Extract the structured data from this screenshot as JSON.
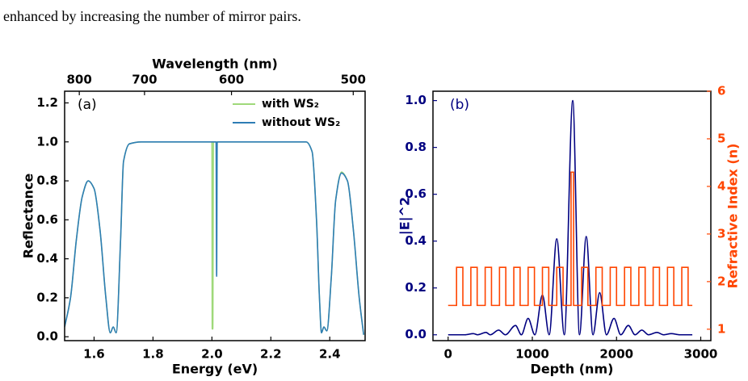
{
  "paragraph": "enhanced by increasing the number of mirror pairs.",
  "chart_data": [
    {
      "type": "line",
      "annotation": "(a)",
      "xlabel": "Energy (eV)",
      "ylabel": "Reflectance",
      "x2label": "Wavelength (nm)",
      "xlim": [
        1.5,
        2.52
      ],
      "ylim": [
        -0.02,
        1.26
      ],
      "xticks": [
        1.6,
        1.8,
        {
          "value": 2.0,
          "label": "2.0"
        },
        2.2,
        2.4
      ],
      "yticks": [
        {
          "value": 0,
          "label": "0.0"
        },
        0.2,
        0.4,
        0.6,
        0.8,
        {
          "value": 1.0,
          "label": "1.0"
        },
        1.2
      ],
      "x2ticks": [
        800,
        700,
        600,
        500
      ],
      "legend": "upper right",
      "x": [
        1.5,
        1.52,
        1.54,
        1.56,
        1.58,
        1.6,
        1.62,
        1.64,
        1.655,
        1.665,
        1.675,
        1.69,
        1.7,
        1.72,
        1.76,
        2.0,
        2.001,
        2.003,
        2.005,
        2.014,
        2.016,
        2.018,
        2.32,
        2.34,
        2.355,
        2.365,
        2.372,
        2.38,
        2.39,
        2.405,
        2.42,
        2.44,
        2.46,
        2.48,
        2.5,
        2.515
      ],
      "series": [
        {
          "name": "with WS₂",
          "color": "#9fd97a",
          "values": [
            0.05,
            0.2,
            0.5,
            0.72,
            0.8,
            0.76,
            0.55,
            0.2,
            0.02,
            0.05,
            0.02,
            0.5,
            0.9,
            0.99,
            1.0,
            1.0,
            0.04,
            0.04,
            1.0,
            1.0,
            1.0,
            1.0,
            1.0,
            0.95,
            0.6,
            0.2,
            0.02,
            0.05,
            0.03,
            0.3,
            0.7,
            0.845,
            0.8,
            0.55,
            0.2,
            0.01
          ]
        },
        {
          "name": "without WS₂",
          "color": "#2e7db5",
          "values": [
            0.05,
            0.2,
            0.5,
            0.72,
            0.8,
            0.76,
            0.55,
            0.2,
            0.02,
            0.05,
            0.02,
            0.5,
            0.9,
            0.99,
            1.0,
            1.0,
            1.0,
            1.0,
            1.0,
            1.0,
            0.31,
            1.0,
            1.0,
            0.95,
            0.6,
            0.2,
            0.02,
            0.05,
            0.03,
            0.3,
            0.7,
            0.84,
            0.8,
            0.55,
            0.2,
            0.01
          ]
        }
      ]
    },
    {
      "type": "line",
      "annotation": "(b)",
      "xlabel": "Depth (nm)",
      "ylabel": "|E|^2",
      "y2label": "Refractive Index (n)",
      "xlim": [
        -180,
        3120
      ],
      "ylim": [
        -0.025,
        1.04
      ],
      "y2lim": [
        0.76,
        6.0
      ],
      "xticks": [
        0,
        1000,
        2000,
        3000
      ],
      "yticks": [
        {
          "value": 0,
          "label": "0.0"
        },
        0.2,
        0.4,
        0.6,
        0.8,
        {
          "value": 1.0,
          "label": "1.0"
        }
      ],
      "y2ticks": [
        1,
        2,
        3,
        4,
        5,
        6
      ],
      "series": [
        {
          "color": "#000080",
          "x": [
            0,
            200,
            300,
            350,
            450,
            500,
            600,
            680,
            800,
            870,
            950,
            1030,
            1120,
            1200,
            1290,
            1380,
            1480,
            1560,
            1640,
            1720,
            1800,
            1880,
            1970,
            2050,
            2140,
            2220,
            2300,
            2380,
            2480,
            2560,
            2650,
            2750,
            2900
          ],
          "values": [
            0,
            0,
            0.005,
            0,
            0.01,
            0,
            0.02,
            0,
            0.04,
            0,
            0.07,
            0,
            0.17,
            0,
            0.41,
            0,
            1.0,
            0,
            0.42,
            0,
            0.18,
            0,
            0.07,
            0,
            0.04,
            0,
            0.02,
            0,
            0.01,
            0,
            0.005,
            0,
            0
          ]
        },
        {
          "color": "#ff4500",
          "axis": "y2",
          "x": [
            0,
            100,
            100,
            175,
            175,
            270,
            270,
            345,
            345,
            440,
            440,
            515,
            515,
            610,
            610,
            685,
            685,
            780,
            780,
            855,
            855,
            950,
            950,
            1025,
            1025,
            1120,
            1120,
            1195,
            1195,
            1290,
            1290,
            1365,
            1365,
            1460,
            1460,
            1490,
            1490,
            1585,
            1585,
            1660,
            1660,
            1755,
            1755,
            1830,
            1830,
            1925,
            1925,
            2000,
            2000,
            2095,
            2095,
            2170,
            2170,
            2265,
            2265,
            2340,
            2340,
            2435,
            2435,
            2510,
            2510,
            2605,
            2605,
            2680,
            2680,
            2775,
            2775,
            2850,
            2850,
            2900
          ],
          "values": [
            1.5,
            1.5,
            2.3,
            2.3,
            1.5,
            1.5,
            2.3,
            2.3,
            1.5,
            1.5,
            2.3,
            2.3,
            1.5,
            1.5,
            2.3,
            2.3,
            1.5,
            1.5,
            2.3,
            2.3,
            1.5,
            1.5,
            2.3,
            2.3,
            1.5,
            1.5,
            2.3,
            2.3,
            1.5,
            1.5,
            2.3,
            2.3,
            1.5,
            1.5,
            4.3,
            4.3,
            1.5,
            1.5,
            2.3,
            2.3,
            1.5,
            1.5,
            2.3,
            2.3,
            1.5,
            1.5,
            2.3,
            2.3,
            1.5,
            1.5,
            2.3,
            2.3,
            1.5,
            1.5,
            2.3,
            2.3,
            1.5,
            1.5,
            2.3,
            2.3,
            1.5,
            1.5,
            2.3,
            2.3,
            1.5,
            1.5,
            2.3,
            2.3,
            1.5,
            1.5
          ]
        }
      ]
    }
  ]
}
